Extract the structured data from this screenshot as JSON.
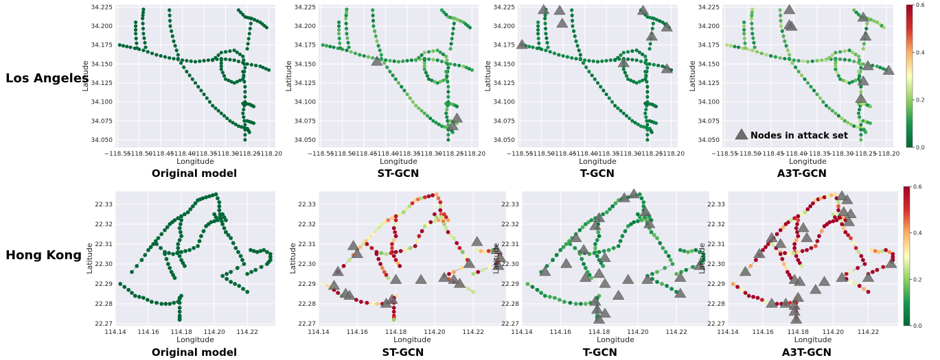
{
  "row_labels": [
    "Los Angeles",
    "Hong Kong"
  ],
  "captions": [
    "Original model",
    "ST-GCN",
    "T-GCN",
    "A3T-GCN",
    "Original model",
    "ST-GCN",
    "T-GCN",
    "A3T-GCN"
  ],
  "legend_label": "Nodes in attack set",
  "colors": {
    "panel_bg": "#eaeaf2",
    "grid": "#ffffff",
    "edge": "#8c8c8c",
    "triangle": "#6e6e6e",
    "triangle_stroke": "#4d4d4d"
  },
  "chart_data": [
    {
      "type": "scatter",
      "region": "Los Angeles",
      "title": "Original model",
      "xlabel": "Longitude",
      "ylabel": "Latitude",
      "xlim": [
        -118.555,
        -118.185
      ],
      "ylim": [
        34.04,
        34.228
      ],
      "x_ticks": [
        "−118.55",
        "−118.50",
        "−118.45",
        "−118.40",
        "−118.35",
        "−118.30",
        "−118.25",
        "−118.20"
      ],
      "x_tick_values": [
        -118.55,
        -118.5,
        -118.45,
        -118.4,
        -118.35,
        -118.3,
        -118.25,
        -118.2
      ],
      "y_ticks": [
        "34.050",
        "34.075",
        "34.100",
        "34.125",
        "34.150",
        "34.175",
        "34.200",
        "34.225"
      ],
      "y_tick_values": [
        34.05,
        34.075,
        34.1,
        34.125,
        34.15,
        34.175,
        34.2,
        34.225
      ],
      "node_value_level": 0.0,
      "attack_nodes": []
    },
    {
      "type": "scatter",
      "region": "Los Angeles",
      "title": "ST-GCN",
      "xlabel": "Longitude",
      "ylabel": "Latitude",
      "xlim": [
        -118.555,
        -118.185
      ],
      "ylim": [
        34.04,
        34.228
      ],
      "x_ticks": [
        "−118.55",
        "−118.50",
        "−118.45",
        "−118.40",
        "−118.35",
        "−118.30",
        "−118.25",
        "−118.20"
      ],
      "x_tick_values": [
        -118.55,
        -118.5,
        -118.45,
        -118.4,
        -118.35,
        -118.3,
        -118.25,
        -118.2
      ],
      "y_ticks": [
        "34.050",
        "34.075",
        "34.100",
        "34.125",
        "34.150",
        "34.175",
        "34.200",
        "34.225"
      ],
      "y_tick_values": [
        34.05,
        34.075,
        34.1,
        34.125,
        34.15,
        34.175,
        34.2,
        34.225
      ],
      "node_value_level": 0.12,
      "attack_nodes": [
        [
          -118.42,
          34.153
        ],
        [
          -118.235,
          34.078
        ],
        [
          -118.245,
          34.068
        ]
      ]
    },
    {
      "type": "scatter",
      "region": "Los Angeles",
      "title": "T-GCN",
      "xlabel": "Longitude",
      "ylabel": "Latitude",
      "xlim": [
        -118.555,
        -118.185
      ],
      "ylim": [
        34.04,
        34.228
      ],
      "x_ticks": [
        "−118.55",
        "−118.50",
        "−118.45",
        "−118.40",
        "−118.35",
        "−118.30",
        "−118.25",
        "−118.20"
      ],
      "x_tick_values": [
        -118.55,
        -118.5,
        -118.45,
        -118.4,
        -118.35,
        -118.3,
        -118.25,
        -118.2
      ],
      "y_ticks": [
        "34.050",
        "34.075",
        "34.100",
        "34.125",
        "34.150",
        "34.175",
        "34.200",
        "34.225"
      ],
      "y_tick_values": [
        34.05,
        34.075,
        34.1,
        34.125,
        34.15,
        34.175,
        34.2,
        34.225
      ],
      "node_value_level": 0.05,
      "attack_nodes": [
        [
          -118.545,
          34.175
        ],
        [
          -118.495,
          34.221
        ],
        [
          -118.458,
          34.22
        ],
        [
          -118.452,
          34.203
        ],
        [
          -118.265,
          34.22
        ],
        [
          -118.245,
          34.186
        ],
        [
          -118.21,
          34.198
        ],
        [
          -118.21,
          34.143
        ],
        [
          -118.31,
          34.151
        ]
      ]
    },
    {
      "type": "scatter",
      "region": "Los Angeles",
      "title": "A3T-GCN",
      "xlabel": "Longitude",
      "ylabel": "Latitude",
      "xlim": [
        -118.555,
        -118.185
      ],
      "ylim": [
        34.04,
        34.228
      ],
      "x_ticks": [
        "−118.55",
        "−118.50",
        "−118.45",
        "−118.40",
        "−118.35",
        "−118.30",
        "−118.25",
        "−118.20"
      ],
      "x_tick_values": [
        -118.55,
        -118.5,
        -118.45,
        -118.4,
        -118.35,
        -118.3,
        -118.25,
        -118.2
      ],
      "y_ticks": [
        "34.050",
        "34.075",
        "34.100",
        "34.125",
        "34.150",
        "34.175",
        "34.200",
        "34.225"
      ],
      "y_tick_values": [
        34.05,
        34.075,
        34.1,
        34.125,
        34.15,
        34.175,
        34.2,
        34.225
      ],
      "node_value_level": 0.15,
      "attack_nodes": [
        [
          -118.41,
          34.221
        ],
        [
          -118.41,
          34.201
        ],
        [
          -118.405,
          34.199
        ],
        [
          -118.25,
          34.211
        ],
        [
          -118.245,
          34.186
        ],
        [
          -118.24,
          34.147
        ],
        [
          -118.195,
          34.141
        ],
        [
          -118.255,
          34.104
        ],
        [
          -118.25,
          34.127
        ]
      ]
    },
    {
      "type": "scatter",
      "region": "Hong Kong",
      "title": "Original model",
      "xlabel": "Longitude",
      "ylabel": "Latitude",
      "xlim": [
        114.14,
        114.237
      ],
      "ylim": [
        22.269,
        22.3365
      ],
      "x_ticks": [
        "114.14",
        "114.16",
        "114.18",
        "114.20",
        "114.22"
      ],
      "x_tick_values": [
        114.14,
        114.16,
        114.18,
        114.2,
        114.22
      ],
      "y_ticks": [
        "22.27",
        "22.28",
        "22.29",
        "22.30",
        "22.31",
        "22.32",
        "22.33"
      ],
      "y_tick_values": [
        22.27,
        22.28,
        22.29,
        22.3,
        22.31,
        22.32,
        22.33
      ],
      "node_value_level": 0.0,
      "attack_nodes": []
    },
    {
      "type": "scatter",
      "region": "Hong Kong",
      "title": "ST-GCN",
      "xlabel": "Longitude",
      "ylabel": "Latitude",
      "xlim": [
        114.14,
        114.237
      ],
      "ylim": [
        22.269,
        22.3365
      ],
      "x_ticks": [
        "114.14",
        "114.16",
        "114.18",
        "114.20",
        "114.22"
      ],
      "x_tick_values": [
        114.14,
        114.16,
        114.18,
        114.2,
        114.22
      ],
      "y_ticks": [
        "22.27",
        "22.28",
        "22.29",
        "22.30",
        "22.31",
        "22.32",
        "22.33"
      ],
      "y_tick_values": [
        22.27,
        22.28,
        22.29,
        22.3,
        22.31,
        22.32,
        22.33
      ],
      "node_value_level": 0.45,
      "attack_nodes": [
        [
          114.15,
          22.296
        ],
        [
          114.148,
          22.289
        ],
        [
          114.154,
          22.285
        ],
        [
          114.156,
          22.284
        ],
        [
          114.16,
          22.305
        ],
        [
          114.158,
          22.309
        ],
        [
          114.18,
          22.292
        ],
        [
          114.178,
          22.282
        ],
        [
          114.175,
          22.28
        ],
        [
          114.193,
          22.292
        ],
        [
          114.205,
          22.293
        ],
        [
          114.21,
          22.292
        ],
        [
          114.213,
          22.29
        ],
        [
          114.222,
          22.311
        ],
        [
          114.232,
          22.307
        ],
        [
          114.234,
          22.303
        ],
        [
          114.233,
          22.299
        ],
        [
          114.218,
          22.3
        ]
      ]
    },
    {
      "type": "scatter",
      "region": "Hong Kong",
      "title": "T-GCN",
      "xlabel": "Longitude",
      "ylabel": "Latitude",
      "xlim": [
        114.14,
        114.237
      ],
      "ylim": [
        22.269,
        22.3365
      ],
      "x_ticks": [
        "114.14",
        "114.16",
        "114.18",
        "114.20",
        "114.22"
      ],
      "x_tick_values": [
        114.14,
        114.16,
        114.18,
        114.2,
        114.22
      ],
      "y_ticks": [
        "22.27",
        "22.28",
        "22.29",
        "22.30",
        "22.31",
        "22.32",
        "22.33"
      ],
      "y_tick_values": [
        22.27,
        22.28,
        22.29,
        22.3,
        22.31,
        22.32,
        22.33
      ],
      "node_value_level": 0.1,
      "attack_nodes": [
        [
          114.152,
          22.296
        ],
        [
          114.163,
          22.3
        ],
        [
          114.168,
          22.313
        ],
        [
          114.172,
          22.307
        ],
        [
          114.18,
          22.323
        ],
        [
          114.178,
          22.319
        ],
        [
          114.183,
          22.303
        ],
        [
          114.18,
          22.295
        ],
        [
          114.173,
          22.293
        ],
        [
          114.183,
          22.29
        ],
        [
          114.19,
          22.284
        ],
        [
          114.178,
          22.281
        ],
        [
          114.179,
          22.277
        ],
        [
          114.18,
          22.272
        ],
        [
          114.183,
          22.275
        ],
        [
          114.193,
          22.333
        ],
        [
          114.198,
          22.335
        ],
        [
          114.204,
          22.326
        ],
        [
          114.206,
          22.32
        ],
        [
          114.195,
          22.292
        ],
        [
          114.205,
          22.292
        ],
        [
          114.222,
          22.285
        ],
        [
          114.222,
          22.293
        ],
        [
          114.232,
          22.299
        ]
      ]
    },
    {
      "type": "scatter",
      "region": "Hong Kong",
      "title": "A3T-GCN",
      "xlabel": "Longitude",
      "ylabel": "Latitude",
      "xlim": [
        114.14,
        114.237
      ],
      "ylim": [
        22.269,
        22.3365
      ],
      "x_ticks": [
        "114.14",
        "114.16",
        "114.18",
        "114.20",
        "114.22"
      ],
      "x_tick_values": [
        114.14,
        114.16,
        114.18,
        114.2,
        114.22
      ],
      "y_ticks": [
        "22.27",
        "22.28",
        "22.29",
        "22.30",
        "22.31",
        "22.32",
        "22.33"
      ],
      "y_tick_values": [
        22.27,
        22.28,
        22.29,
        22.3,
        22.31,
        22.32,
        22.33
      ],
      "node_value_level": 0.58,
      "attack_nodes": [
        [
          114.15,
          22.296
        ],
        [
          114.158,
          22.305
        ],
        [
          114.165,
          22.313
        ],
        [
          114.17,
          22.31
        ],
        [
          114.183,
          22.318
        ],
        [
          114.185,
          22.313
        ],
        [
          114.178,
          22.292
        ],
        [
          114.181,
          22.291
        ],
        [
          114.165,
          22.28
        ],
        [
          114.173,
          22.28
        ],
        [
          114.178,
          22.279
        ],
        [
          114.18,
          22.283
        ],
        [
          114.178,
          22.276
        ],
        [
          114.179,
          22.272
        ],
        [
          114.19,
          22.287
        ],
        [
          114.195,
          22.291
        ],
        [
          114.205,
          22.334
        ],
        [
          114.208,
          22.332
        ],
        [
          114.206,
          22.326
        ],
        [
          114.21,
          22.325
        ],
        [
          114.209,
          22.321
        ],
        [
          114.205,
          22.293
        ],
        [
          114.22,
          22.293
        ],
        [
          114.233,
          22.3
        ]
      ]
    }
  ],
  "colorbars": [
    {
      "ticks": [
        "0.0",
        "0.2",
        "0.4",
        "0.6"
      ],
      "tick_values": [
        0.0,
        0.2,
        0.4,
        0.6
      ],
      "range": [
        0,
        0.6
      ]
    },
    {
      "ticks": [
        "0.0",
        "0.2",
        "0.4",
        "0.6"
      ],
      "tick_values": [
        0.0,
        0.2,
        0.4,
        0.6
      ],
      "range": [
        0,
        0.6
      ]
    }
  ]
}
